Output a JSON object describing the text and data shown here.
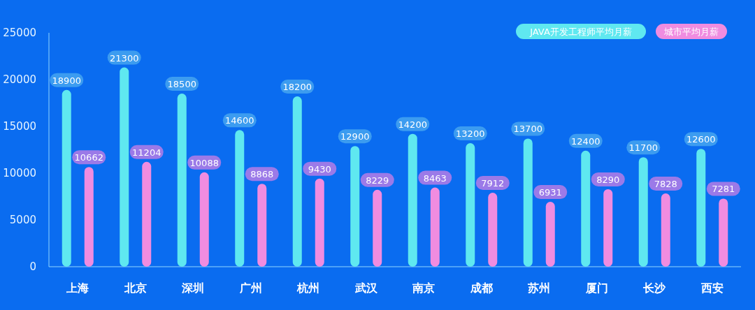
{
  "chart_data": {
    "type": "bar",
    "categories": [
      "上海",
      "北京",
      "深圳",
      "广州",
      "杭州",
      "武汉",
      "南京",
      "成都",
      "苏州",
      "厦门",
      "长沙",
      "西安"
    ],
    "series": [
      {
        "name": "JAVA开发工程师平均月薪",
        "color": "#5fe8f0",
        "values": [
          18900,
          21300,
          18500,
          14600,
          18200,
          12900,
          14200,
          13200,
          13700,
          12400,
          11700,
          12600
        ]
      },
      {
        "name": "城市平均月薪",
        "color": "#f08ce0",
        "values": [
          10662,
          11204,
          10088,
          8868,
          9430,
          8229,
          8463,
          7912,
          6931,
          8290,
          7828,
          7281
        ]
      }
    ],
    "ylim": [
      0,
      25000
    ],
    "yticks": [
      0,
      5000,
      10000,
      15000,
      20000,
      25000
    ],
    "data_labels": true,
    "legend": "top right",
    "grid": false
  }
}
